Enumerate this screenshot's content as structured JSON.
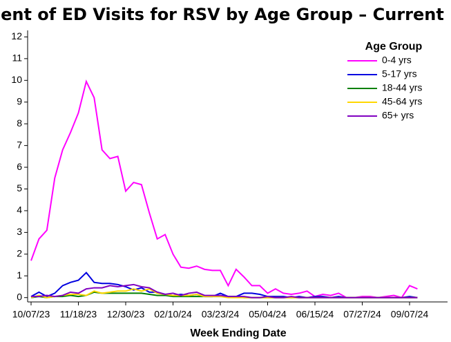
{
  "chart_data": {
    "type": "line",
    "title": "Percent of ED Visits for RSV by Age Group – Current Season",
    "x_label": "Week Ending Date",
    "legend_title": "Age Group",
    "legend_position": "upper right",
    "categories": [
      "10/07/23",
      null,
      null,
      null,
      null,
      null,
      "11/18/23",
      null,
      null,
      null,
      null,
      null,
      "12/30/23",
      null,
      null,
      null,
      null,
      null,
      "02/10/24",
      null,
      null,
      null,
      null,
      null,
      "03/23/24",
      null,
      null,
      null,
      null,
      null,
      "05/04/24",
      null,
      null,
      null,
      null,
      null,
      "06/15/24",
      null,
      null,
      null,
      null,
      null,
      "07/27/24",
      null,
      null,
      null,
      null,
      null,
      "09/07/24",
      null
    ],
    "ylim": [
      -0.2,
      12.3
    ],
    "yticks": [
      0,
      1,
      2,
      3,
      4,
      5,
      6,
      7,
      8,
      9,
      10,
      11,
      12
    ],
    "series": [
      {
        "name": "0-4 yrs",
        "color": "#ff00ff",
        "values": [
          1.7,
          2.7,
          3.1,
          5.5,
          6.8,
          7.6,
          8.5,
          9.95,
          9.2,
          6.8,
          6.4,
          6.5,
          4.9,
          5.3,
          5.2,
          3.9,
          2.7,
          2.9,
          2.0,
          1.4,
          1.35,
          1.45,
          1.3,
          1.25,
          1.25,
          0.55,
          1.3,
          0.95,
          0.55,
          0.55,
          0.2,
          0.4,
          0.2,
          0.15,
          0.2,
          0.3,
          0.05,
          0.15,
          0.1,
          0.2,
          0.0,
          0.0,
          0.05,
          0.05,
          0.0,
          0.05,
          0.1,
          0.0,
          0.55,
          0.4
        ]
      },
      {
        "name": "5-17 yrs",
        "color": "#0000e0",
        "values": [
          0.05,
          0.25,
          0.05,
          0.2,
          0.55,
          0.7,
          0.8,
          1.15,
          0.7,
          0.65,
          0.65,
          0.6,
          0.5,
          0.35,
          0.45,
          0.25,
          0.25,
          0.15,
          0.1,
          0.15,
          0.1,
          0.15,
          0.05,
          0.05,
          0.2,
          0.05,
          0.05,
          0.2,
          0.2,
          0.15,
          0.05,
          0.05,
          0.05,
          0.0,
          0.05,
          0.0,
          0.05,
          0.05,
          0.0,
          0.05,
          0.0,
          0.0,
          0.0,
          0.0,
          0.0,
          0.0,
          0.0,
          0.0,
          0.05,
          0.0
        ]
      },
      {
        "name": "18-44 yrs",
        "color": "#008000",
        "values": [
          0.0,
          0.05,
          0.0,
          0.05,
          0.05,
          0.1,
          0.05,
          0.1,
          0.25,
          0.2,
          0.2,
          0.2,
          0.2,
          0.2,
          0.2,
          0.15,
          0.1,
          0.1,
          0.05,
          0.05,
          0.05,
          0.05,
          0.05,
          0.05,
          0.05,
          0.05,
          0.05,
          0.0,
          0.0,
          0.0,
          0.0,
          0.0,
          0.0,
          0.0,
          0.0,
          0.0,
          0.0,
          0.0,
          0.0,
          0.0,
          0.0,
          0.0,
          0.0,
          0.0,
          0.0,
          0.0,
          0.0,
          0.0,
          0.0,
          0.0
        ]
      },
      {
        "name": "45-64 yrs",
        "color": "#ffd700",
        "values": [
          0.0,
          0.1,
          0.0,
          0.05,
          0.1,
          0.15,
          0.15,
          0.1,
          0.3,
          0.2,
          0.25,
          0.3,
          0.3,
          0.4,
          0.3,
          0.4,
          0.2,
          0.15,
          0.1,
          0.1,
          0.1,
          0.15,
          0.05,
          0.05,
          0.05,
          0.0,
          0.0,
          0.0,
          0.0,
          0.0,
          0.0,
          0.0,
          0.0,
          0.0,
          0.0,
          0.0,
          0.0,
          0.0,
          0.0,
          0.0,
          0.0,
          0.0,
          0.0,
          0.0,
          0.0,
          0.0,
          0.0,
          0.0,
          0.0,
          0.0
        ]
      },
      {
        "name": "65+ yrs",
        "color": "#8000c0",
        "values": [
          0.05,
          0.05,
          0.1,
          0.05,
          0.1,
          0.25,
          0.2,
          0.4,
          0.45,
          0.45,
          0.55,
          0.5,
          0.55,
          0.6,
          0.5,
          0.45,
          0.25,
          0.15,
          0.2,
          0.1,
          0.2,
          0.25,
          0.1,
          0.1,
          0.1,
          0.05,
          0.05,
          0.05,
          0.0,
          0.0,
          0.05,
          0.0,
          0.0,
          0.05,
          0.0,
          0.0,
          0.0,
          0.0,
          0.0,
          0.0,
          0.0,
          0.0,
          0.0,
          0.0,
          0.0,
          0.0,
          0.0,
          0.0,
          0.0,
          0.0
        ]
      }
    ]
  }
}
